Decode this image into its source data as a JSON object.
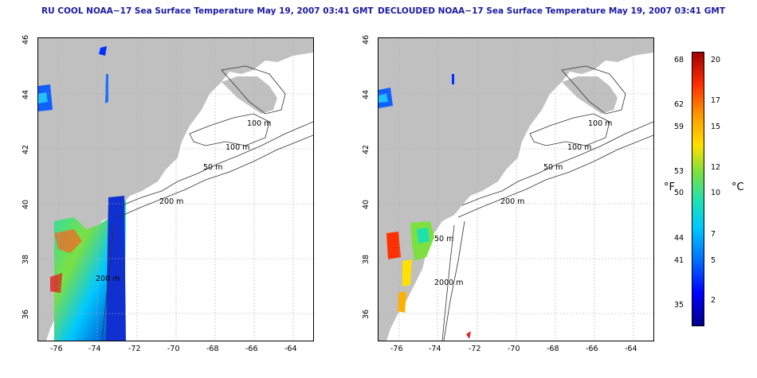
{
  "left_panel": {
    "title": "RU COOL NOAA−17 Sea Surface Temperature May 19, 2007 03:41 GMT",
    "x_ticks": [
      "-76",
      "-74",
      "-72",
      "-70",
      "-68",
      "-66",
      "-64"
    ],
    "y_ticks": [
      "46",
      "44",
      "42",
      "40",
      "38",
      "36"
    ],
    "contour_labels": [
      "100 m",
      "100 m",
      "50 m",
      "200 m",
      "200 m"
    ]
  },
  "right_panel": {
    "title": "DECLOUDED NOAA−17 Sea Surface Temperature May 19, 2007 03:41 GMT",
    "x_ticks": [
      "-76",
      "-74",
      "-72",
      "-70",
      "-68",
      "-66",
      "-64"
    ],
    "y_ticks": [
      "46",
      "44",
      "42",
      "40",
      "38",
      "36"
    ],
    "contour_labels": [
      "100 m",
      "100 m",
      "50 m",
      "200 m",
      "50 m",
      "2000 m"
    ]
  },
  "colorbar": {
    "fahrenheit_label": "°F",
    "celsius_label": "°C",
    "fahrenheit_ticks": [
      "68",
      "62",
      "59",
      "53",
      "50",
      "44",
      "41",
      "35"
    ],
    "celsius_ticks": [
      "20",
      "17",
      "15",
      "12",
      "10",
      "7",
      "5",
      "2"
    ],
    "colors": [
      "#00008b",
      "#0000ff",
      "#00c8ff",
      "#7ce040",
      "#ffe000",
      "#ff9000",
      "#a00000"
    ]
  },
  "land_color": "#c0c0c0"
}
